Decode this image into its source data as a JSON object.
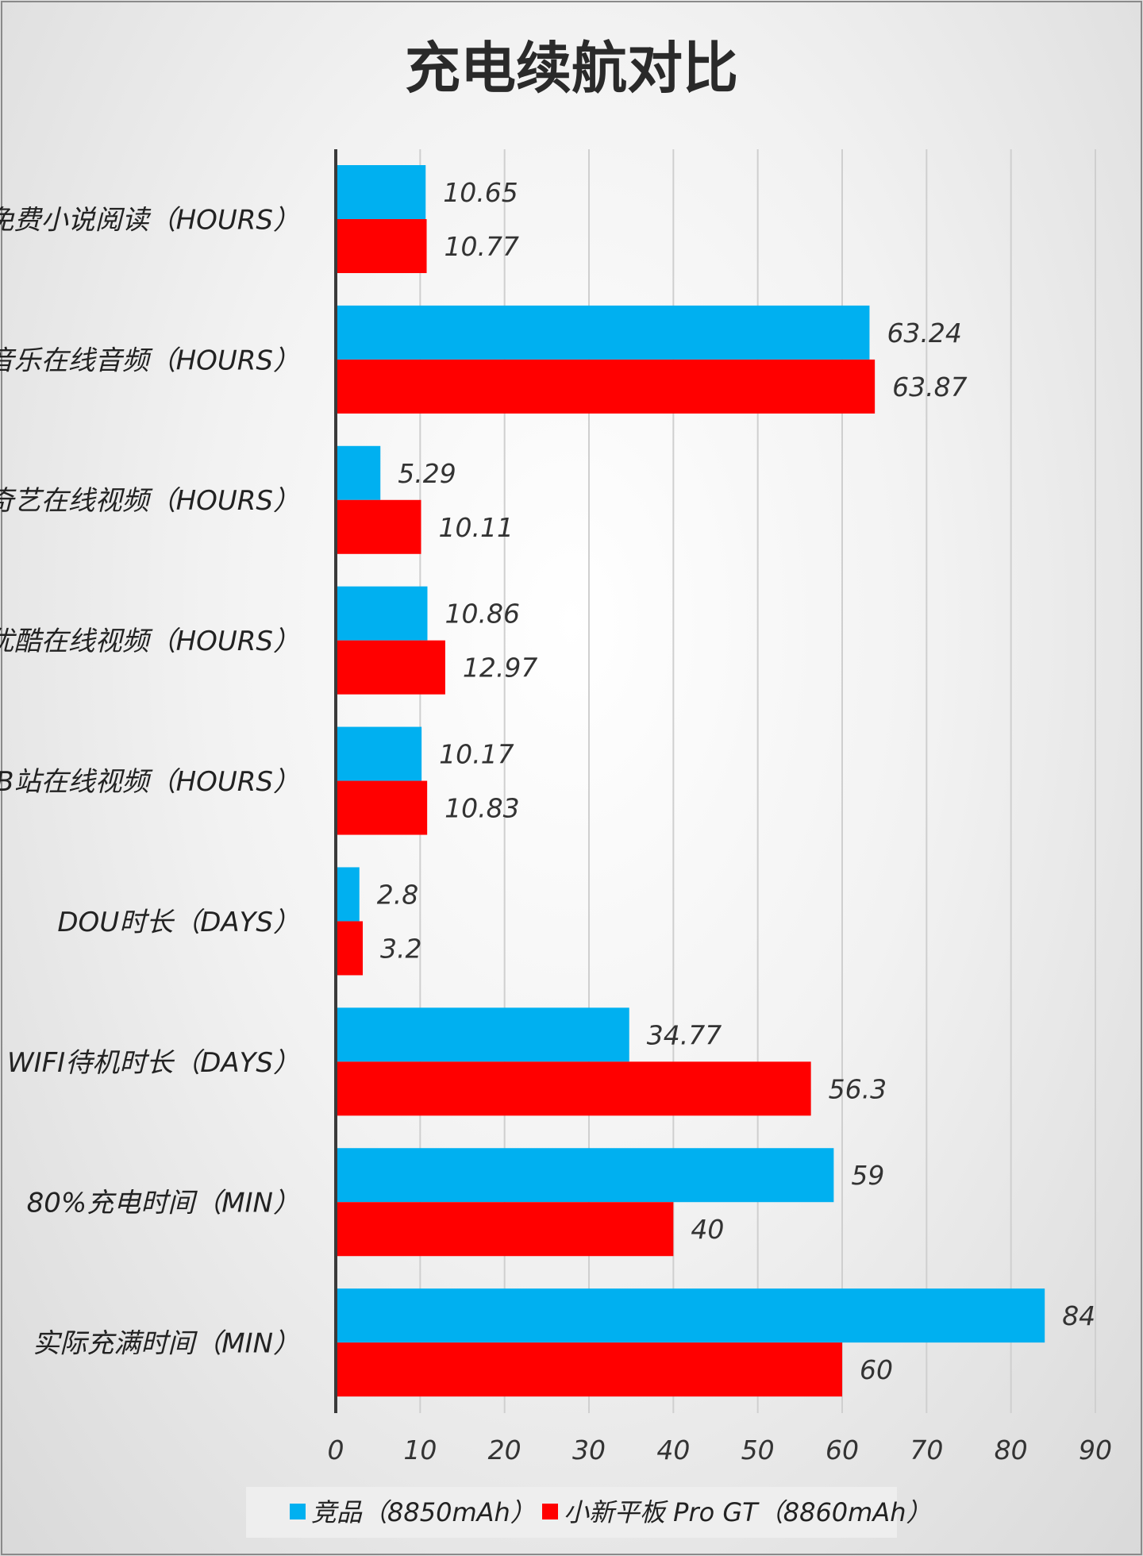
{
  "chart_data": {
    "type": "bar",
    "orientation": "horizontal",
    "title": "充电续航对比",
    "categories": [
      "番茄免费小说阅读（HOURS）",
      "QQ音乐在线音频（HOURS）",
      "爱奇艺在线视频（HOURS）",
      "优酷在线视频（HOURS）",
      "B站在线视频（HOURS）",
      "DOU时长（DAYS）",
      "WIFI待机时长（DAYS）",
      "80%充电时间（MIN）",
      "实际充满时间（MIN）"
    ],
    "series": [
      {
        "name": "竞品（8850mAh）",
        "color": "#00b0f0",
        "values": [
          10.65,
          63.24,
          5.29,
          10.86,
          10.17,
          2.8,
          34.77,
          59,
          84
        ],
        "labels": [
          "10.65",
          "63.24",
          "5.29",
          "10.86",
          "10.17",
          "2.8",
          "34.77",
          "59",
          "84"
        ]
      },
      {
        "name": "小新平板 Pro GT（8860mAh）",
        "color": "#ff0000",
        "values": [
          10.77,
          63.87,
          10.11,
          12.97,
          10.83,
          3.2,
          56.3,
          40,
          60
        ],
        "labels": [
          "10.77",
          "63.87",
          "10.11",
          "12.97",
          "10.83",
          "3.2",
          "56.3",
          "40",
          "60"
        ]
      }
    ],
    "xlim": [
      0,
      90
    ],
    "xticks": [
      0,
      10,
      20,
      30,
      40,
      50,
      60,
      70,
      80,
      90
    ],
    "grid": true,
    "legend": "bottom"
  }
}
